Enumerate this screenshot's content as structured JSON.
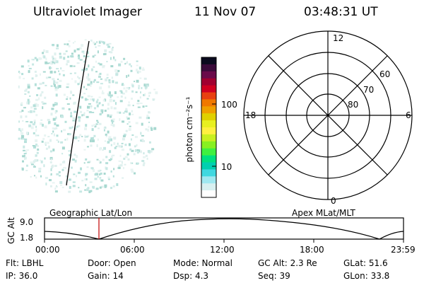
{
  "header": {
    "title": "Ultraviolet Imager",
    "date": "11 Nov 07",
    "time": "03:48:31 UT"
  },
  "colorbar": {
    "unit_label": "photon cm⁻²s⁻¹",
    "ticks": [
      "100",
      "10"
    ],
    "colors": [
      "#0a0a1e",
      "#3a0a3a",
      "#6a0a4a",
      "#a00030",
      "#d00020",
      "#e84010",
      "#f07800",
      "#f0a000",
      "#e0d000",
      "#e8f020",
      "#fff040",
      "#c8f020",
      "#88f020",
      "#40f040",
      "#00e080",
      "#00d0b0",
      "#40d8e0",
      "#a0e8f0",
      "#d8f0f0",
      "#ffffff"
    ]
  },
  "polar": {
    "mlt_labels": {
      "top": "12",
      "right": "6",
      "bottom": "0",
      "left": "18"
    },
    "lat_labels": [
      "60",
      "70",
      "80"
    ]
  },
  "timeline": {
    "left_label": "Geographic Lat/Lon",
    "right_label": "Apex  MLat/MLT",
    "y_axis_label": "GC Alt",
    "y_ticks": [
      "9.0",
      "1.8"
    ],
    "x_ticks": [
      "00:00",
      "06:00",
      "12:00",
      "18:00",
      "23:59"
    ]
  },
  "info": {
    "flt": "Flt: LBHL",
    "ip": "IP: 36.0",
    "door": "Door: Open",
    "gain": "Gain: 14",
    "mode": "Mode: Normal",
    "dsp": "Dsp:     4.3",
    "gcalt": "GC Alt: 2.3 Re",
    "seq": "Seq: 39",
    "glat": "GLat:  51.6",
    "glon": "GLon:  33.8"
  }
}
